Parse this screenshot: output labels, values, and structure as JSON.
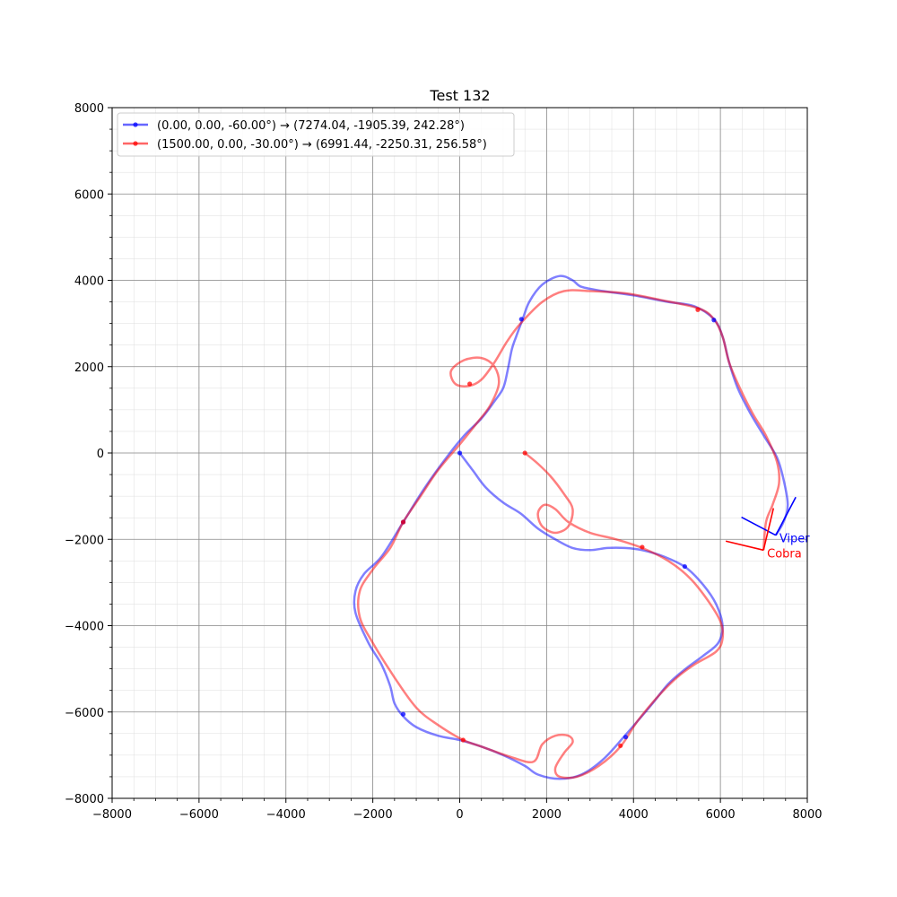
{
  "chart_data": {
    "type": "line",
    "title": "Test 132",
    "xlabel": "",
    "ylabel": "",
    "xlim": [
      -8000,
      8000
    ],
    "ylim": [
      -8000,
      8000
    ],
    "xticks": [
      -8000,
      -6000,
      -4000,
      -2000,
      0,
      2000,
      4000,
      6000,
      8000
    ],
    "yticks": [
      -8000,
      -6000,
      -4000,
      -2000,
      0,
      2000,
      4000,
      6000,
      8000
    ],
    "xtick_labels": [
      "−8000",
      "−6000",
      "−4000",
      "−2000",
      "0",
      "2000",
      "4000",
      "6000",
      "8000"
    ],
    "ytick_labels": [
      "−8000",
      "−6000",
      "−4000",
      "−2000",
      "0",
      "2000",
      "4000",
      "6000",
      "8000"
    ],
    "minor_step": 500,
    "grid": true,
    "legend_position": "top-left",
    "series": [
      {
        "name": "(0.00, 0.00, -60.00°) → (7274.04, -1905.39, 242.28°)",
        "color": "#0000ff",
        "points": [
          [
            0,
            0
          ],
          [
            300,
            -400
          ],
          [
            600,
            -800
          ],
          [
            1000,
            -1150
          ],
          [
            1400,
            -1400
          ],
          [
            1800,
            -1750
          ],
          [
            2200,
            -2000
          ],
          [
            2600,
            -2200
          ],
          [
            3000,
            -2250
          ],
          [
            3400,
            -2200
          ],
          [
            3800,
            -2200
          ],
          [
            4200,
            -2250
          ],
          [
            4700,
            -2400
          ],
          [
            5200,
            -2650
          ],
          [
            5600,
            -3050
          ],
          [
            5900,
            -3500
          ],
          [
            6050,
            -4000
          ],
          [
            5950,
            -4400
          ],
          [
            5600,
            -4700
          ],
          [
            5200,
            -5000
          ],
          [
            4800,
            -5350
          ],
          [
            4400,
            -5850
          ],
          [
            3800,
            -6550
          ],
          [
            3300,
            -7100
          ],
          [
            2800,
            -7450
          ],
          [
            2300,
            -7550
          ],
          [
            1800,
            -7450
          ],
          [
            1500,
            -7250
          ],
          [
            1000,
            -7000
          ],
          [
            500,
            -6800
          ],
          [
            0,
            -6650
          ],
          [
            -500,
            -6550
          ],
          [
            -1000,
            -6350
          ],
          [
            -1300,
            -6100
          ],
          [
            -1500,
            -5800
          ],
          [
            -1600,
            -5400
          ],
          [
            -1800,
            -4900
          ],
          [
            -2100,
            -4400
          ],
          [
            -2400,
            -3700
          ],
          [
            -2400,
            -3200
          ],
          [
            -2200,
            -2800
          ],
          [
            -1800,
            -2400
          ],
          [
            -1300,
            -1600
          ],
          [
            -800,
            -800
          ],
          [
            -300,
            -100
          ],
          [
            100,
            400
          ],
          [
            500,
            800
          ],
          [
            800,
            1200
          ],
          [
            1000,
            1500
          ],
          [
            1100,
            1900
          ],
          [
            1200,
            2400
          ],
          [
            1300,
            2700
          ],
          [
            1450,
            3100
          ],
          [
            1600,
            3500
          ],
          [
            1900,
            3900
          ],
          [
            2300,
            4100
          ],
          [
            2600,
            4000
          ],
          [
            2800,
            3850
          ],
          [
            3300,
            3750
          ],
          [
            4000,
            3650
          ],
          [
            4800,
            3500
          ],
          [
            5400,
            3400
          ],
          [
            5850,
            3100
          ],
          [
            6050,
            2700
          ],
          [
            6200,
            2100
          ],
          [
            6400,
            1500
          ],
          [
            6700,
            900
          ],
          [
            7000,
            400
          ],
          [
            7300,
            -100
          ],
          [
            7450,
            -600
          ],
          [
            7550,
            -1200
          ],
          [
            7450,
            -1600
          ],
          [
            7274,
            -1905
          ]
        ],
        "markers": [
          [
            0,
            0
          ],
          [
            5180,
            -2630
          ],
          [
            3820,
            -6580
          ],
          [
            -1300,
            -6050
          ],
          [
            -1300,
            -1600
          ],
          [
            1420,
            3100
          ],
          [
            5850,
            3080
          ]
        ]
      },
      {
        "name": "(1500.00, 0.00, -30.00°) → (6991.44, -2250.31, 256.58°)",
        "color": "#ff0000",
        "points": [
          [
            1500,
            0
          ],
          [
            1800,
            -250
          ],
          [
            2100,
            -550
          ],
          [
            2400,
            -950
          ],
          [
            2600,
            -1300
          ],
          [
            2500,
            -1700
          ],
          [
            2200,
            -1850
          ],
          [
            1900,
            -1700
          ],
          [
            1800,
            -1400
          ],
          [
            1950,
            -1200
          ],
          [
            2200,
            -1300
          ],
          [
            2500,
            -1600
          ],
          [
            3000,
            -1850
          ],
          [
            3600,
            -2000
          ],
          [
            4200,
            -2200
          ],
          [
            4800,
            -2500
          ],
          [
            5300,
            -2900
          ],
          [
            5700,
            -3400
          ],
          [
            6000,
            -3900
          ],
          [
            6050,
            -4300
          ],
          [
            5900,
            -4600
          ],
          [
            5400,
            -4900
          ],
          [
            5000,
            -5200
          ],
          [
            4600,
            -5600
          ],
          [
            4100,
            -6200
          ],
          [
            3700,
            -6800
          ],
          [
            3200,
            -7250
          ],
          [
            2700,
            -7500
          ],
          [
            2300,
            -7500
          ],
          [
            2200,
            -7300
          ],
          [
            2400,
            -6950
          ],
          [
            2600,
            -6700
          ],
          [
            2500,
            -6550
          ],
          [
            2200,
            -6550
          ],
          [
            1900,
            -6750
          ],
          [
            1700,
            -7150
          ],
          [
            1200,
            -7050
          ],
          [
            500,
            -6800
          ],
          [
            80,
            -6650
          ],
          [
            -500,
            -6300
          ],
          [
            -1000,
            -5900
          ],
          [
            -1500,
            -5200
          ],
          [
            -2000,
            -4400
          ],
          [
            -2300,
            -3800
          ],
          [
            -2300,
            -3200
          ],
          [
            -2000,
            -2700
          ],
          [
            -1600,
            -2200
          ],
          [
            -1300,
            -1600
          ],
          [
            -900,
            -1000
          ],
          [
            -500,
            -400
          ],
          [
            0,
            200
          ],
          [
            400,
            700
          ],
          [
            700,
            1100
          ],
          [
            900,
            1600
          ],
          [
            800,
            2000
          ],
          [
            500,
            2200
          ],
          [
            100,
            2150
          ],
          [
            -200,
            1900
          ],
          [
            -100,
            1600
          ],
          [
            200,
            1550
          ],
          [
            500,
            1700
          ],
          [
            800,
            2100
          ],
          [
            1100,
            2600
          ],
          [
            1400,
            3000
          ],
          [
            1900,
            3500
          ],
          [
            2400,
            3750
          ],
          [
            3000,
            3750
          ],
          [
            3800,
            3700
          ],
          [
            4600,
            3550
          ],
          [
            5500,
            3350
          ],
          [
            5850,
            3100
          ],
          [
            6050,
            2700
          ],
          [
            6200,
            2100
          ],
          [
            6450,
            1500
          ],
          [
            6750,
            900
          ],
          [
            7050,
            400
          ],
          [
            7300,
            -200
          ],
          [
            7350,
            -700
          ],
          [
            7200,
            -1200
          ],
          [
            7050,
            -1600
          ],
          [
            6991,
            -2250
          ]
        ],
        "markers": [
          [
            1500,
            0
          ],
          [
            4200,
            -2180
          ],
          [
            3700,
            -6780
          ],
          [
            80,
            -6650
          ],
          [
            -1300,
            -1600
          ],
          [
            230,
            1600
          ],
          [
            5480,
            3320
          ]
        ]
      }
    ],
    "annotations": [
      {
        "text": "Viper",
        "color": "#0000ff",
        "x": 7274.04,
        "y": -1905.39,
        "heading": 242.28
      },
      {
        "text": "Cobra",
        "color": "#ff0000",
        "x": 6991.44,
        "y": -2250.31,
        "heading": 256.58
      }
    ]
  }
}
